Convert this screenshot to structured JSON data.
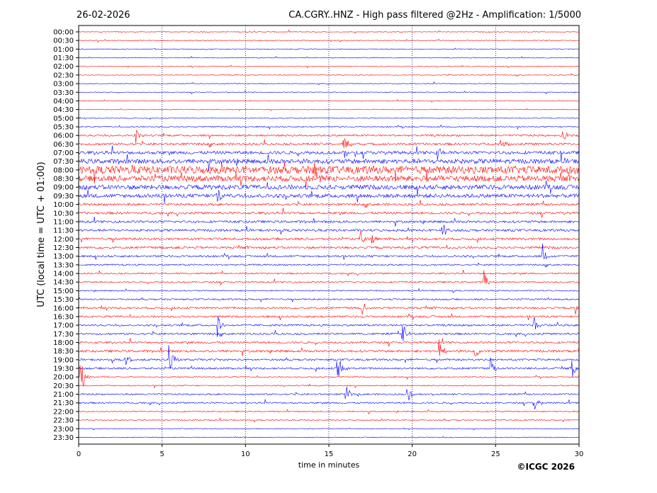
{
  "header": {
    "date": "26-02-2026",
    "title": "CA.CGRY..HNZ - High pass filtered @2Hz - Amplification: 1/5000"
  },
  "footer": {
    "copyright": "©ICGC 2026"
  },
  "colors": {
    "trace_red": "#ff0000",
    "trace_blue": "#0000ff",
    "grid": "#000080"
  },
  "chart_data": {
    "type": "line",
    "title": "CA.CGRY..HNZ - High pass filtered @2Hz - Amplification: 1/5000",
    "xlabel": "time in minutes",
    "ylabel": "UTC (local time = UTC + 01:00)",
    "xlim": [
      0,
      30
    ],
    "x_ticks": [
      0,
      5,
      10,
      15,
      20,
      25,
      30
    ],
    "grid": "vertical dotted at 5, 10, 15, 20, 25",
    "y_ticks": [
      "00:00",
      "00:30",
      "01:00",
      "01:30",
      "02:00",
      "02:30",
      "03:00",
      "03:30",
      "04:00",
      "04:30",
      "05:00",
      "05:30",
      "06:00",
      "06:30",
      "07:00",
      "07:30",
      "08:00",
      "08:30",
      "09:00",
      "09:30",
      "10:00",
      "10:30",
      "11:00",
      "11:30",
      "12:00",
      "12:30",
      "13:00",
      "13:30",
      "14:00",
      "14:30",
      "15:00",
      "15:30",
      "16:00",
      "16:30",
      "17:00",
      "17:30",
      "18:00",
      "18:30",
      "19:00",
      "19:30",
      "20:00",
      "20:30",
      "21:00",
      "21:30",
      "22:00",
      "22:30",
      "23:00",
      "23:30"
    ],
    "trace_color_pattern": [
      "red",
      "red",
      "blue",
      "blue"
    ],
    "noise_level": [
      0.02,
      0.02,
      0.02,
      0.02,
      0.02,
      0.02,
      0.02,
      0.02,
      0.02,
      0.02,
      0.02,
      0.03,
      0.05,
      0.06,
      0.08,
      0.12,
      0.2,
      0.15,
      0.12,
      0.1,
      0.06,
      0.06,
      0.06,
      0.06,
      0.06,
      0.06,
      0.05,
      0.04,
      0.04,
      0.04,
      0.03,
      0.04,
      0.05,
      0.05,
      0.05,
      0.05,
      0.05,
      0.06,
      0.05,
      0.05,
      0.03,
      0.03,
      0.04,
      0.04,
      0.03,
      0.03,
      0.02,
      0.02
    ],
    "events": [
      {
        "trace": "06:00",
        "minute": 3.4,
        "amplitude": 0.6
      },
      {
        "trace": "06:00",
        "minute": 29.0,
        "amplitude": 0.5
      },
      {
        "trace": "06:30",
        "minute": 15.9,
        "amplitude": 0.8
      },
      {
        "trace": "06:30",
        "minute": 25.3,
        "amplitude": 0.5
      },
      {
        "trace": "07:00",
        "minute": 21.5,
        "amplitude": 0.6
      },
      {
        "trace": "07:00",
        "minute": 15.9,
        "amplitude": 0.5
      },
      {
        "trace": "08:00",
        "minute": 14.1,
        "amplitude": 0.6
      },
      {
        "trace": "08:30",
        "minute": 14.2,
        "amplitude": 0.6
      },
      {
        "trace": "09:30",
        "minute": 8.3,
        "amplitude": 0.4
      },
      {
        "trace": "11:30",
        "minute": 21.8,
        "amplitude": 0.5
      },
      {
        "trace": "12:00",
        "minute": 16.9,
        "amplitude": 0.5
      },
      {
        "trace": "12:00",
        "minute": 17.6,
        "amplitude": 0.6
      },
      {
        "trace": "13:00",
        "minute": 27.8,
        "amplitude": 0.8
      },
      {
        "trace": "14:30",
        "minute": 24.3,
        "amplitude": 0.7
      },
      {
        "trace": "16:00",
        "minute": 17.0,
        "amplitude": 0.5
      },
      {
        "trace": "16:00",
        "minute": 29.8,
        "amplitude": 0.7
      },
      {
        "trace": "17:00",
        "minute": 8.3,
        "amplitude": 0.9
      },
      {
        "trace": "17:00",
        "minute": 27.3,
        "amplitude": 0.5
      },
      {
        "trace": "17:30",
        "minute": 19.4,
        "amplitude": 0.9
      },
      {
        "trace": "18:30",
        "minute": 21.6,
        "amplitude": 0.9
      },
      {
        "trace": "18:30",
        "minute": 23.7,
        "amplitude": 0.7
      },
      {
        "trace": "19:00",
        "minute": 5.4,
        "amplitude": 1.2
      },
      {
        "trace": "19:00",
        "minute": 2.8,
        "amplitude": 0.6
      },
      {
        "trace": "19:30",
        "minute": 15.5,
        "amplitude": 1.0
      },
      {
        "trace": "19:30",
        "minute": 24.7,
        "amplitude": 0.7
      },
      {
        "trace": "19:30",
        "minute": 29.6,
        "amplitude": 0.7
      },
      {
        "trace": "20:00",
        "minute": 0.1,
        "amplitude": 1.4
      },
      {
        "trace": "21:00",
        "minute": 16.0,
        "amplitude": 0.6
      },
      {
        "trace": "21:00",
        "minute": 19.7,
        "amplitude": 0.5
      },
      {
        "trace": "21:30",
        "minute": 27.3,
        "amplitude": 0.5
      }
    ]
  }
}
